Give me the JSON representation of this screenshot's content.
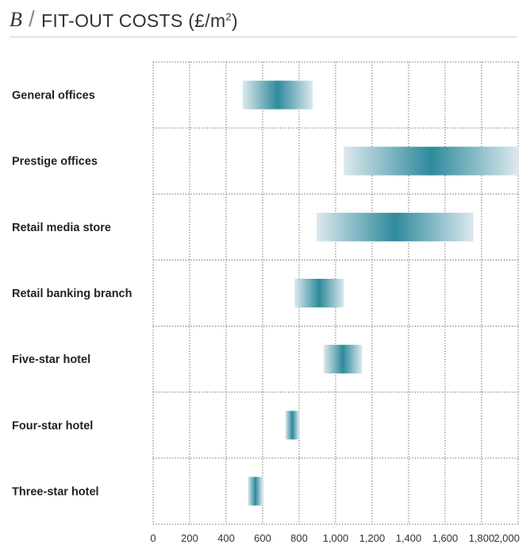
{
  "header": {
    "letter": "B",
    "separator": "/",
    "title": "FIT-OUT COSTS (£/m",
    "title_sup": "2",
    "title_end": ")"
  },
  "chart_data": {
    "type": "bar",
    "orientation": "horizontal-range",
    "title": "FIT-OUT COSTS (£/m²)",
    "xlabel": "",
    "ylabel": "",
    "xlim": [
      0,
      2000
    ],
    "xticks": [
      0,
      200,
      400,
      600,
      800,
      1000,
      1200,
      1400,
      1600,
      1800,
      2000
    ],
    "xtick_labels": [
      "0",
      "200",
      "400",
      "600",
      "800",
      "1,000",
      "1,200",
      "1,400",
      "1,600",
      "1,800",
      "2,000"
    ],
    "grid": true,
    "bar_color": "#2e8a9c",
    "categories": [
      "General offices",
      "Prestige offices",
      "Retail media store",
      "Retail banking branch",
      "Five-star hotel",
      "Four-star hotel",
      "Three-star hotel"
    ],
    "ranges": [
      [
        490,
        875
      ],
      [
        1045,
        2050
      ],
      [
        895,
        1755
      ],
      [
        775,
        1045
      ],
      [
        935,
        1145
      ],
      [
        725,
        800
      ],
      [
        520,
        600
      ]
    ]
  }
}
